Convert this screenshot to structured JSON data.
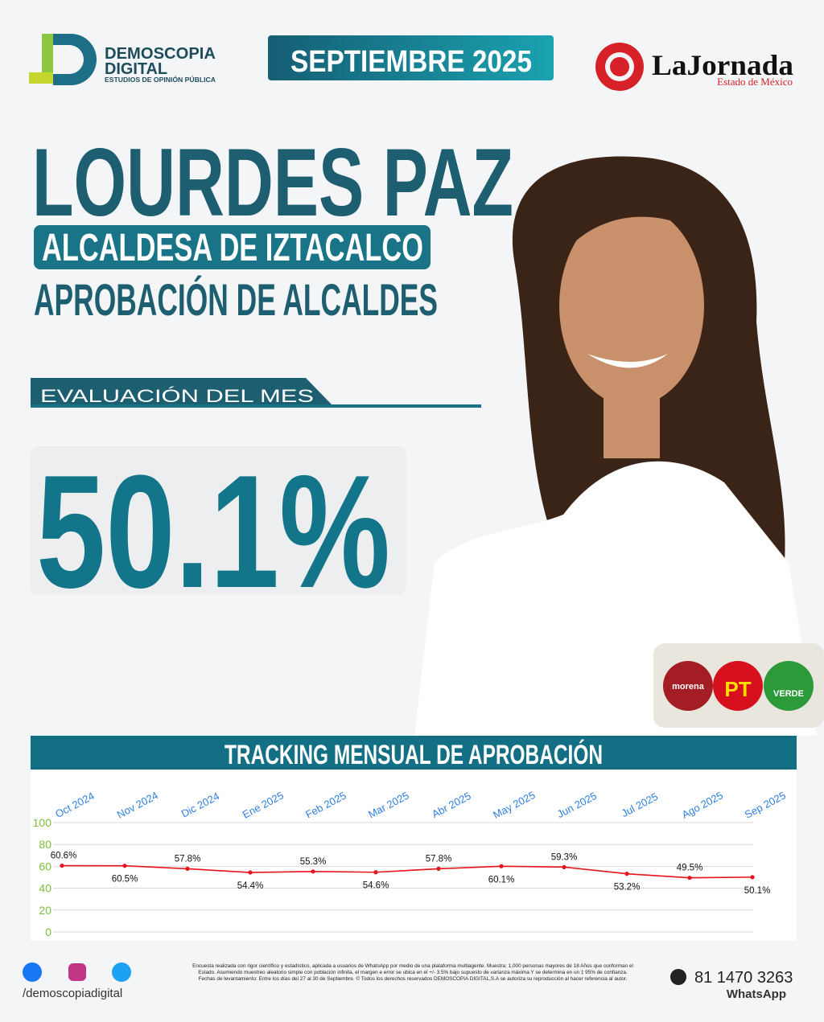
{
  "header": {
    "brand": "DEMOSCOPIA",
    "brand_2": "DIGITAL",
    "brand_tagline": "ESTUDIOS DE OPINIÓN PÚBLICA",
    "date": "SEPTIEMBRE 2025",
    "partner": "LaJornada",
    "partner_region": "Estado de México"
  },
  "headline": {
    "name": "LOURDES PAZ",
    "role": "ALCALDESA DE IZTACALCO",
    "topic": "APROBACIÓN DE ALCALDES",
    "section": "EVALUACIÓN DEL MES",
    "result": "50.1%"
  },
  "parties": [
    "morena",
    "PT",
    "VERDE"
  ],
  "chart_data": {
    "type": "line",
    "title": "TRACKING MENSUAL DE APROBACIÓN",
    "categories": [
      "Oct 2024",
      "Nov 2024",
      "Dic 2024",
      "Ene 2025",
      "Feb 2025",
      "Mar 2025",
      "Abr 2025",
      "May 2025",
      "Jun 2025",
      "Jul 2025",
      "Ago 2025",
      "Sep 2025"
    ],
    "series": [
      {
        "color": "#e8141c",
        "values": [
          60.6,
          60.5,
          57.8,
          54.4,
          55.3,
          54.6,
          57.8,
          60.1,
          59.3,
          53.2,
          49.5,
          50.1
        ],
        "value_labels": [
          "60.6%",
          "60.5%",
          "57.8%",
          "54.4%",
          "55.3%",
          "54.6%",
          "57.8%",
          "60.1%",
          "59.3%",
          "53.2%",
          "49.5%",
          "50.1%"
        ]
      }
    ],
    "ylim": [
      0,
      100
    ],
    "yticks": [
      0,
      20,
      40,
      60,
      80,
      100
    ],
    "grid": true
  },
  "footer": {
    "social": "/demoscopiadigital",
    "disclaimer": "Encuesta realizada con rigor científico y estadístico, aplicada a usuarios de WhatsApp por medio de una plataforma multiagente. Muestra: 1,000 personas mayores de 18 Años que conforman el Estado. Asumiendo muestreo aleatorio simple con población infinita, el margen e error se ubica en el +/- 3.5% bajo supuesto de varianza máxima Y se determina en un ‡ 95% de confianza. Fechas de levantamiento: Entre los días del 27 al 30 de Septiembre. © Todos los derechos reservados DEMOSCOPIA DIGITAL,S.A se autoriza su reproducción al hacer referencia al autor.",
    "phone": "81 1470 3263",
    "phone_label": "WhatsApp"
  }
}
